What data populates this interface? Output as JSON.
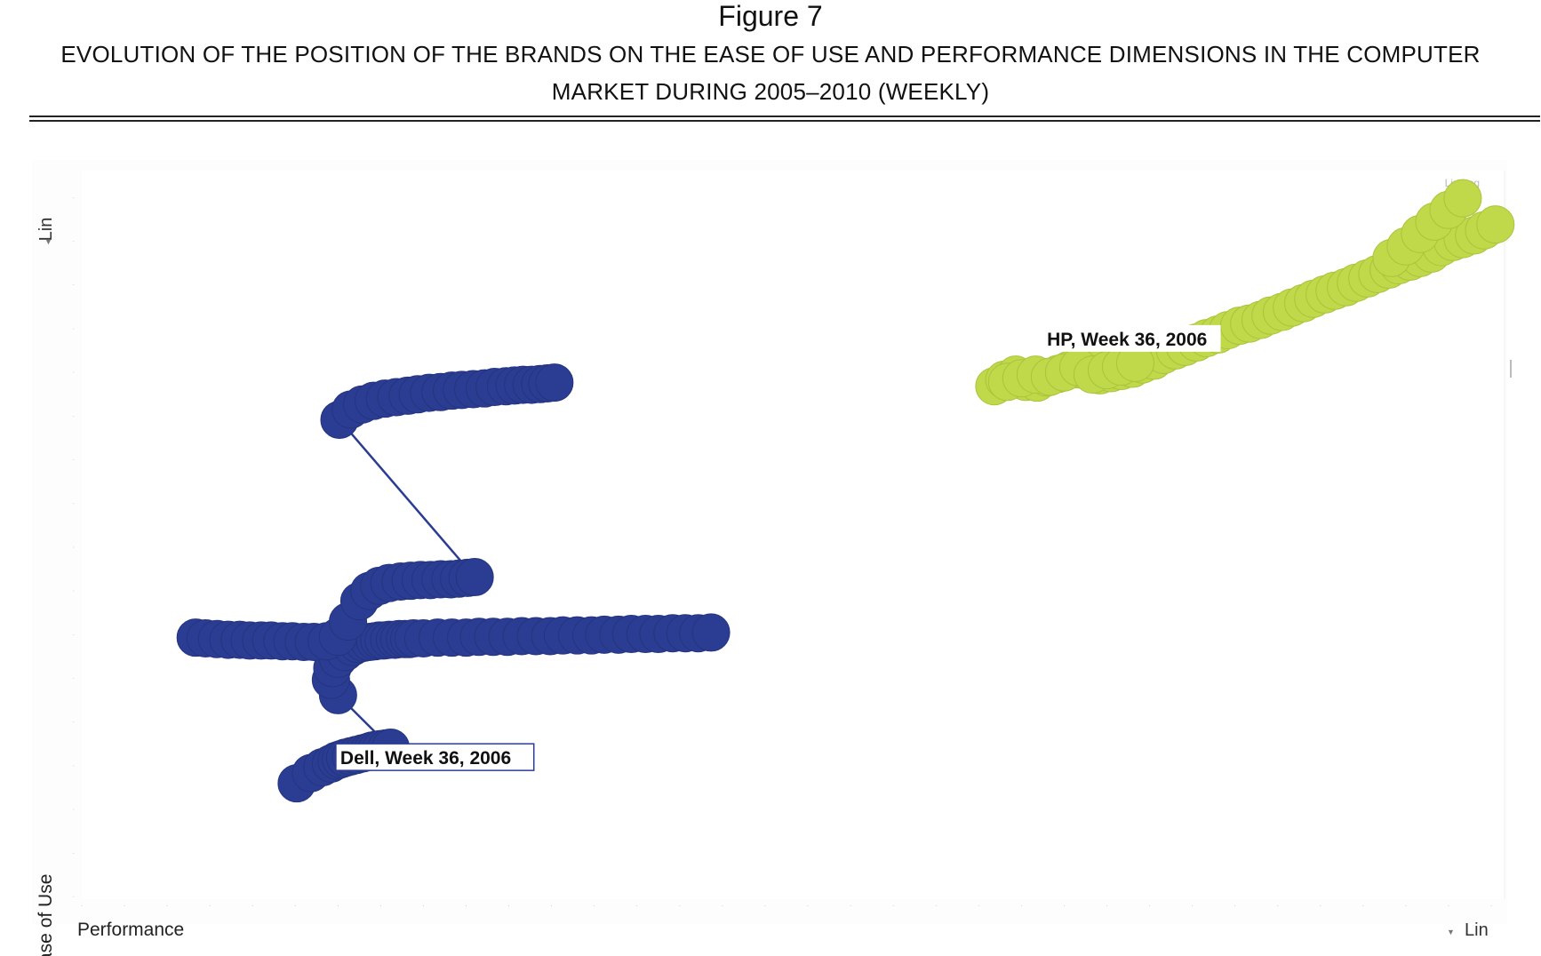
{
  "figure": {
    "label": "Figure 7",
    "title": "EVOLUTION OF THE POSITION OF THE BRANDS ON THE EASE OF USE AND PERFORMANCE DIMENSIONS IN THE COMPUTER MARKET DURING 2005–2010 (WEEKLY)"
  },
  "controls": {
    "y_scale": "Lin",
    "x_scale": "Lin",
    "corner_scales": "Lin  Log"
  },
  "chart_data": {
    "type": "scatter",
    "title": "",
    "xlabel": "Performance",
    "ylabel": "Ease of Use",
    "xlim": [
      0,
      100
    ],
    "ylim": [
      0,
      100
    ],
    "grid": false,
    "colors": {
      "Dell": "#2b3d92",
      "HP": "#bfd94a"
    },
    "annotations": [
      {
        "text": "Dell, Week 36, 2006",
        "series": "Dell"
      },
      {
        "text": "HP, Week 36, 2006",
        "series": "HP"
      }
    ],
    "series": [
      {
        "name": "Dell",
        "x": [
          15.1,
          16.1,
          16.9,
          17.5,
          17.9,
          18.2,
          18.5,
          18.9,
          19.3,
          19.7,
          20.1,
          20.4,
          20.7,
          21.0,
          21.4,
          21.7,
          18.0,
          17.5,
          17.6,
          18.0,
          18.5,
          19.0,
          19.4,
          19.8,
          20.2,
          20.6,
          20.9,
          21.2,
          21.6,
          22.0,
          22.3,
          22.7,
          23.0,
          23.3,
          24.0,
          25.0,
          26.0,
          27.0,
          27.9,
          28.9,
          29.9,
          30.9,
          31.9,
          32.9,
          33.8,
          34.8,
          35.8,
          36.7,
          37.7,
          38.6,
          39.6,
          40.5,
          41.5,
          42.4,
          43.3,
          44.2,
          8.0,
          8.7,
          9.5,
          10.3,
          11.1,
          11.8,
          12.6,
          13.3,
          14.1,
          14.8,
          15.6,
          16.3,
          17.2,
          18.0,
          18.7,
          19.5,
          20.2,
          20.9,
          21.6,
          22.4,
          23.1,
          23.8,
          24.5,
          25.2,
          25.9,
          26.5,
          27.1,
          27.6,
          18.1,
          18.9,
          19.7,
          20.5,
          21.3,
          22.1,
          22.9,
          23.6,
          24.4,
          25.2,
          26.0,
          26.7,
          27.5,
          28.3,
          29.0,
          29.8,
          30.4,
          31.0,
          31.6,
          32.2,
          32.7,
          33.2
        ],
        "y": [
          15.9,
          17.3,
          18.1,
          18.6,
          19.0,
          19.2,
          19.4,
          19.6,
          19.8,
          20.0,
          20.2,
          20.4,
          20.5,
          20.6,
          20.7,
          20.8,
          28.0,
          30.1,
          31.7,
          33.0,
          33.9,
          34.6,
          35.0,
          35.2,
          35.3,
          35.4,
          35.5,
          35.5,
          35.6,
          35.6,
          35.7,
          35.7,
          35.7,
          35.8,
          35.8,
          35.9,
          35.9,
          35.9,
          36.0,
          36.0,
          36.0,
          36.1,
          36.1,
          36.1,
          36.2,
          36.2,
          36.2,
          36.3,
          36.3,
          36.4,
          36.4,
          36.4,
          36.5,
          36.5,
          36.5,
          36.6,
          35.9,
          35.8,
          35.7,
          35.6,
          35.6,
          35.5,
          35.5,
          35.5,
          35.4,
          35.4,
          35.3,
          35.3,
          35.4,
          36.0,
          38.1,
          40.9,
          42.3,
          43.0,
          43.4,
          43.6,
          43.7,
          43.8,
          43.8,
          43.9,
          43.9,
          44.0,
          44.1,
          44.2,
          65.8,
          67.2,
          67.9,
          68.4,
          68.7,
          68.9,
          69.1,
          69.3,
          69.5,
          69.6,
          69.8,
          69.9,
          70.0,
          70.1,
          70.3,
          70.4,
          70.5,
          70.6,
          70.6,
          70.7,
          70.8,
          70.9
        ]
      },
      {
        "name": "HP",
        "x": [
          64.1,
          64.8,
          65.6,
          66.3,
          67.1,
          67.8,
          68.6,
          69.3,
          70.1,
          70.8,
          71.5,
          72.3,
          73.0,
          73.8,
          74.5,
          75.3,
          76.0,
          76.8,
          77.5,
          78.3,
          79.0,
          79.8,
          80.5,
          81.3,
          82.0,
          82.8,
          83.5,
          84.3,
          85.0,
          85.8,
          86.5,
          87.3,
          88.0,
          88.8,
          89.5,
          90.3,
          91.0,
          91.8,
          92.5,
          93.3,
          94.0,
          94.8,
          95.5,
          96.3,
          97.0,
          97.8,
          98.5,
          99.3,
          65.0,
          66.0,
          67.0,
          68.0,
          69.0,
          70.0,
          71.0,
          72.0,
          73.0,
          74.0,
          92.0,
          93.0,
          94.0,
          95.0,
          96.0,
          97.0
        ],
        "y": [
          70.4,
          71.3,
          72.0,
          71.0,
          70.9,
          71.6,
          72.1,
          72.6,
          72.7,
          73.2,
          71.9,
          72.2,
          72.5,
          72.8,
          73.4,
          73.9,
          74.7,
          75.3,
          75.8,
          76.4,
          77.0,
          77.5,
          78.1,
          78.7,
          79.0,
          79.5,
          80.1,
          80.6,
          81.2,
          81.8,
          82.4,
          83.0,
          83.5,
          84.0,
          84.6,
          85.2,
          85.8,
          86.4,
          87.0,
          87.5,
          88.0,
          88.6,
          89.5,
          90.2,
          90.6,
          91.1,
          91.8,
          92.6,
          71.0,
          71.5,
          72.0,
          71.7,
          72.3,
          73.0,
          72.0,
          72.6,
          73.1,
          73.6,
          88.0,
          89.6,
          91.3,
          93.0,
          94.6,
          96.2
        ]
      }
    ]
  }
}
